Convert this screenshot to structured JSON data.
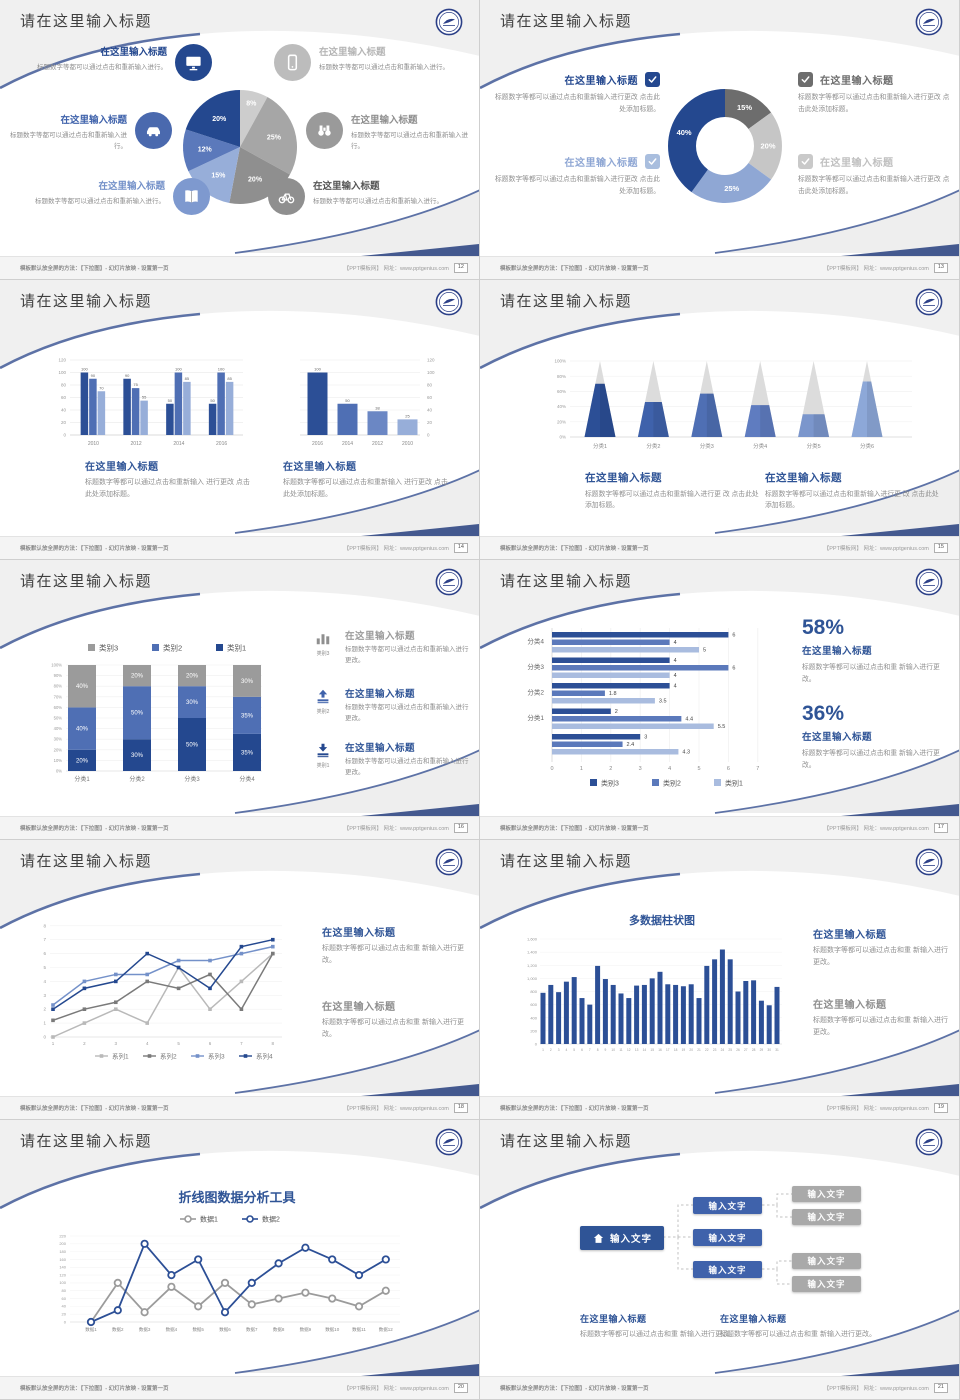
{
  "common": {
    "slide_title": "请在这里输入标题",
    "footer_left": "模板默认放全屏的方法：【下拉图】- 幻灯片放映 - 设置第一页",
    "footer_right": "【PPT模板网】 网址：www.pptgenius.com"
  },
  "colors": {
    "accent_triangle": "#44598f",
    "swoosh_blue": "#5d72a6",
    "title_blue": "#2f5496",
    "body_gray": "#8f8f8f",
    "bar_navy": "#2c4f96"
  },
  "slides": [
    {
      "page": "12",
      "type": "pie_info",
      "chart_data": {
        "type": "pie",
        "values": [
          8,
          25,
          20,
          15,
          12,
          20
        ],
        "labels": [
          "8%",
          "25%",
          "20%",
          "15%",
          "12%",
          "20%"
        ],
        "colors": [
          "#cdcdcd",
          "#a6a6a6",
          "#8f8f8f",
          "#97aed9",
          "#5b79bb",
          "#24488f"
        ]
      },
      "blocks_left": [
        {
          "icon": "monitor-icon",
          "icon_color": "#24488f",
          "title": "在这里输入标题",
          "title_color": "#24488f",
          "body": "标题数字等都可以通过点击和重新输入进行。"
        },
        {
          "icon": "car-icon",
          "icon_color": "#4a69ae",
          "title": "在这里输入标题",
          "title_color": "#3f62ab",
          "body": "标题数字等都可以通过点击和重新输入进行。"
        },
        {
          "icon": "book-icon",
          "icon_color": "#7e99cf",
          "title": "在这里输入标题",
          "title_color": "#7491c9",
          "body": "标题数字等都可以通过点击和重新输入进行。"
        }
      ],
      "blocks_right": [
        {
          "icon": "phone-icon",
          "icon_color": "#bcbcbc",
          "title": "在这里输入标题",
          "title_color": "#b5b5b5",
          "body": "标题数字等都可以通过点击和重新输入进行。"
        },
        {
          "icon": "binoculars-icon",
          "icon_color": "#9a9a9a",
          "title": "在这里输入标题",
          "title_color": "#8f8f8f",
          "body": "标题数字等都可以通过点击和重新输入进行。"
        },
        {
          "icon": "bicycle-icon",
          "icon_color": "#8f8f8f",
          "title": "在这里输入标题",
          "title_color": "#555555",
          "body": "标题数字等都可以通过点击和重新输入进行。"
        }
      ]
    },
    {
      "page": "13",
      "type": "donut_check",
      "chart_data": {
        "type": "donut",
        "values": [
          15,
          20,
          25,
          40
        ],
        "labels": [
          "15%",
          "20%",
          "25%",
          "40%"
        ],
        "colors": [
          "#6d6d6d",
          "#c6c6c6",
          "#8fa7d4",
          "#24488f"
        ]
      },
      "blocks": [
        {
          "side": "left",
          "title": "在这里输入标题",
          "title_color": "#24488f",
          "check_color": "#24488f",
          "body": "标题数字等都可以通过点击和重新输入进行更改 点击此处添加标题。"
        },
        {
          "side": "left",
          "title": "在这里输入标题",
          "title_color": "#8fa7d4",
          "check_color": "#a9bede",
          "body": "标题数字等都可以通过点击和重新输入进行更改 点击此处添加标题。"
        },
        {
          "side": "right",
          "title": "在这里输入标题",
          "title_color": "#6d6d6d",
          "check_color": "#6d6d6d",
          "body": "标题数字等都可以通过点击和重新输入进行更改 点击此处添加标题。"
        },
        {
          "side": "right",
          "title": "在这里输入标题",
          "title_color": "#c0c0c0",
          "check_color": "#c9c9c9",
          "body": "标题数字等都可以通过点击和重新输入进行更改 点击此处添加标题。"
        }
      ]
    },
    {
      "page": "14",
      "type": "bar_pair",
      "chart_data": [
        {
          "type": "bar",
          "subtype": "grouped",
          "categories": [
            "2010",
            "2012",
            "2014",
            "2016"
          ],
          "series": [
            {
              "values": [
                100,
                90,
                50,
                50
              ]
            },
            {
              "values": [
                90,
                75,
                100,
                100
              ]
            },
            {
              "values": [
                70,
                55,
                85,
                85
              ]
            }
          ],
          "colors": [
            "#2c4f96",
            "#4f6fb4",
            "#97aed9"
          ],
          "ylim": [
            0,
            120
          ],
          "yticks": [
            0,
            20,
            40,
            60,
            80,
            100,
            120
          ]
        },
        {
          "type": "bar",
          "categories": [
            "2016",
            "2014",
            "2012",
            "2010"
          ],
          "values": [
            100,
            50,
            38,
            25
          ],
          "colors": [
            "#2c4f96",
            "#4f6fb4",
            "#6b87c4",
            "#97aed9"
          ],
          "ylim": [
            0,
            120
          ],
          "yticks": [
            0,
            20,
            40,
            60,
            80,
            100,
            120
          ]
        }
      ],
      "texts": [
        {
          "title": "在这里输入标题",
          "title_color": "#2f5496",
          "body": "标题数字等都可以通过点击和重新输入 进行更改 点击此处添加标题。"
        },
        {
          "title": "在这里输入标题",
          "title_color": "#2f5496",
          "body": "标题数字等都可以通过点击和重新输入 进行更改 点击此处添加标题。"
        }
      ]
    },
    {
      "page": "15",
      "type": "pyramid",
      "chart_data": {
        "type": "pyramid",
        "categories": [
          "分类1",
          "分类2",
          "分类3",
          "分类4",
          "分类5",
          "分类6"
        ],
        "fill_percent": [
          70,
          46,
          57,
          42,
          30,
          73
        ],
        "colors": [
          "#2c4f96",
          "#3f62ab",
          "#4f6fb4",
          "#5f7cc0",
          "#7b96cc",
          "#8da8d8"
        ],
        "ytick_labels": [
          "0%",
          "20%",
          "40%",
          "60%",
          "80%",
          "100%"
        ]
      },
      "texts": [
        {
          "title": "在这里输入标题",
          "title_color": "#2f5496",
          "body": "标题数字等都可以通过点击和重新输入进行更 改 点击此处添加标题。"
        },
        {
          "title": "在这里输入标题",
          "title_color": "#2f5496",
          "body": "标题数字等都可以通过点击和重新输入进行更 改 点击此处添加标题。"
        }
      ]
    },
    {
      "page": "16",
      "type": "stacked",
      "chart_data": {
        "type": "stacked_bar",
        "categories": [
          "分类1",
          "分类2",
          "分类3",
          "分类4"
        ],
        "series": [
          {
            "name": "类别1",
            "color": "#24488f",
            "values": [
              20,
              30,
              50,
              35
            ]
          },
          {
            "name": "类别2",
            "color": "#4f6fb4",
            "values": [
              40,
              50,
              30,
              35
            ]
          },
          {
            "name": "类别3",
            "color": "#9b9b9b",
            "values": [
              40,
              20,
              20,
              30
            ]
          }
        ],
        "legend": [
          {
            "name": "类别3",
            "color": "#9b9b9b"
          },
          {
            "name": "类别2",
            "color": "#4f6fb4"
          },
          {
            "name": "类别1",
            "color": "#24488f"
          }
        ],
        "ytick_labels": [
          "0%",
          "10%",
          "20%",
          "30%",
          "40%",
          "50%",
          "60%",
          "70%",
          "80%",
          "90%",
          "100%"
        ]
      },
      "items": [
        {
          "icon": "bar-chart-icon",
          "icon_color": "#8f8f8f",
          "caption": "类别3",
          "title": "在这里输入标题",
          "title_color": "#9b9b9b",
          "body": "标题数字等都可以通过点击和重新输入进行更改。"
        },
        {
          "icon": "upload-icon",
          "icon_color": "#3f62ab",
          "caption": "类别2",
          "title": "在这里输入标题",
          "title_color": "#2f5496",
          "body": "标题数字等都可以通过点击和重新输入进行更改。"
        },
        {
          "icon": "download-icon",
          "icon_color": "#24488f",
          "caption": "类别1",
          "title": "在这里输入标题",
          "title_color": "#2f5496",
          "body": "标题数字等都可以通过点击和重新输入进行更改。"
        }
      ]
    },
    {
      "page": "17",
      "type": "hbar",
      "chart_data": {
        "type": "hbar",
        "groups": [
          {
            "label": "分类4",
            "values": [
              6,
              4,
              5
            ]
          },
          {
            "label": "分类3",
            "values": [
              4,
              6,
              4
            ]
          },
          {
            "label": "分类2",
            "values": [
              4,
              1.8,
              3.5
            ]
          },
          {
            "label": "分类1",
            "values": [
              2,
              4.4,
              5.5
            ]
          },
          {
            "label": "",
            "values": [
              3,
              2.4,
              4.3
            ]
          }
        ],
        "series_colors": [
          "#2c4f96",
          "#5b79bb",
          "#a9bcdf"
        ],
        "xticks": [
          0,
          1,
          2,
          3,
          4,
          5,
          6,
          7
        ],
        "legend": [
          {
            "name": "类别3",
            "color": "#2c4f96"
          },
          {
            "name": "类别2",
            "color": "#5b79bb"
          },
          {
            "name": "类别1",
            "color": "#a9bcdf"
          }
        ]
      },
      "stats": [
        {
          "value": "58%",
          "title": "在这里输入标题",
          "body": "标题数字等都可以通过点击和重 新输入进行更改。"
        },
        {
          "value": "36%",
          "title": "在这里输入标题",
          "body": "标题数字等都可以通过点击和重 新输入进行更改。"
        }
      ]
    },
    {
      "page": "18",
      "type": "line4",
      "chart_data": {
        "type": "line",
        "x": [
          1,
          2,
          3,
          4,
          5,
          6,
          7,
          8
        ],
        "ylim": [
          0,
          8
        ],
        "series": [
          {
            "name": "系列1",
            "color": "#b9b9b9",
            "values": [
              0,
              1,
              2,
              1,
              5,
              2,
              4,
              6
            ]
          },
          {
            "name": "系列2",
            "color": "#7a7a7a",
            "values": [
              1.2,
              2,
              2.5,
              4,
              3.5,
              4.5,
              2,
              6
            ]
          },
          {
            "name": "系列3",
            "color": "#7491c9",
            "values": [
              2.3,
              4,
              4.5,
              4.5,
              5.5,
              5.5,
              6,
              6.5
            ]
          },
          {
            "name": "系列4",
            "color": "#24488f",
            "values": [
              2,
              3.5,
              4,
              6,
              5,
              3.5,
              6.5,
              7
            ]
          }
        ]
      },
      "texts": [
        {
          "title": "在这里输入标题",
          "title_color": "#2f5496",
          "body": "标题数字等都可以通过点击和重 新输入进行更改。"
        },
        {
          "title": "在这里输入标题",
          "title_color": "#8f8f8f",
          "body": "标题数字等都可以通过点击和重 新输入进行更改。"
        }
      ]
    },
    {
      "page": "19",
      "type": "col31",
      "chart_data": {
        "type": "bar",
        "title": "多数据柱状图",
        "categories": [
          "1",
          "2",
          "3",
          "4",
          "5",
          "6",
          "7",
          "8",
          "9",
          "10",
          "11",
          "12",
          "13",
          "14",
          "15",
          "16",
          "17",
          "18",
          "19",
          "20",
          "21",
          "22",
          "23",
          "24",
          "25",
          "26",
          "27",
          "28",
          "29",
          "30",
          "31"
        ],
        "values": [
          780,
          900,
          790,
          950,
          1020,
          700,
          600,
          1190,
          990,
          900,
          770,
          700,
          890,
          900,
          1000,
          1100,
          910,
          900,
          880,
          910,
          700,
          1190,
          1290,
          1440,
          1290,
          800,
          960,
          970,
          660,
          590,
          870
        ],
        "ylim": [
          0,
          1600
        ],
        "ytick_labels": [
          "0",
          "200",
          "400",
          "600",
          "800",
          "1,000",
          "1,200",
          "1,400",
          "1,600"
        ],
        "color": "#2c4f96"
      },
      "texts": [
        {
          "title": "在这里输入标题",
          "title_color": "#2f5496",
          "body": "标题数字等都可以通过点击和重 新输入进行更改。"
        },
        {
          "title": "在这里输入标题",
          "title_color": "#8f8f8f",
          "body": "标题数字等都可以通过点击和重 新输入进行更改。"
        }
      ]
    },
    {
      "page": "20",
      "type": "line2",
      "chart_data": {
        "type": "line",
        "title": "折线图数据分析工具",
        "categories": [
          "数据1",
          "数据2",
          "数据3",
          "数据4",
          "数据5",
          "数据6",
          "数据7",
          "数据8",
          "数据9",
          "数据10",
          "数据11",
          "数据12"
        ],
        "ylim": [
          0,
          220
        ],
        "yticks": [
          0,
          20,
          40,
          60,
          80,
          100,
          120,
          140,
          160,
          180,
          200,
          220
        ],
        "series": [
          {
            "name": "数据1",
            "color": "#9b9b9b",
            "values": [
              0,
              100,
              25,
              90,
              40,
              100,
              45,
              60,
              75,
              60,
              40,
              80
            ]
          },
          {
            "name": "数据2",
            "color": "#2c4f96",
            "values": [
              0,
              30,
              200,
              120,
              160,
              25,
              100,
              150,
              190,
              160,
              120,
              160
            ]
          }
        ]
      }
    },
    {
      "page": "21",
      "type": "tree",
      "tree": {
        "root_label": "输入文字",
        "mid_labels": [
          "输入文字",
          "输入文字",
          "输入文字"
        ],
        "leaf_labels": [
          "输入文字",
          "输入文字",
          "输入文字",
          "输入文字"
        ]
      },
      "texts": [
        {
          "title": "在这里输入标题",
          "title_color": "#2f5496",
          "body": "标题数字等都可以通过点击和重 新输入进行更改。"
        },
        {
          "title": "在这里输入标题",
          "title_color": "#2f5496",
          "body": "标题数字等都可以通过点击和重 新输入进行更改。"
        }
      ]
    }
  ]
}
